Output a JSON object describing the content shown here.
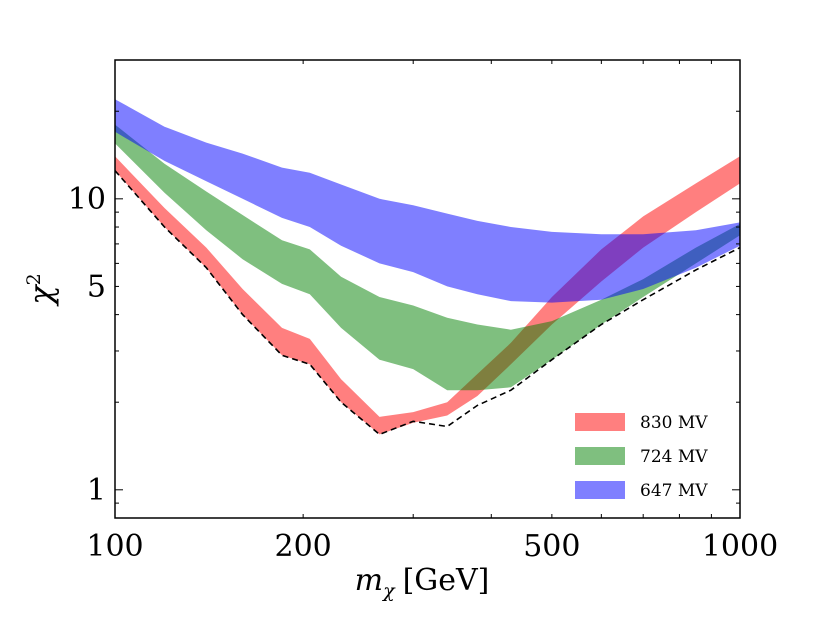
{
  "chart_data": {
    "type": "area",
    "title": "",
    "xlabel": "m_χ [GeV]",
    "xlabel_main": "m",
    "xlabel_sub": "χ",
    "xlabel_unit": "[GeV]",
    "ylabel": "χ²",
    "ylabel_main": "χ",
    "ylabel_sup": "2",
    "xscale": "log",
    "yscale": "log",
    "xlim": [
      100,
      1000
    ],
    "ylim": [
      0.8,
      30
    ],
    "xticks": [
      {
        "value": 100,
        "label": "100"
      },
      {
        "value": 200,
        "label": "200"
      },
      {
        "value": 500,
        "label": "500"
      },
      {
        "value": 1000,
        "label": "1000"
      }
    ],
    "yticks": [
      {
        "value": 1,
        "label": "1"
      },
      {
        "value": 5,
        "label": "5"
      },
      {
        "value": 10,
        "label": "10"
      }
    ],
    "legend_position": "lower-right",
    "series": [
      {
        "name": "830 MV",
        "color": "#ff0000",
        "opacity": 0.5,
        "x": [
          100,
          120,
          140,
          160,
          185,
          205,
          230,
          265,
          300,
          340,
          380,
          430,
          500,
          600,
          700,
          850,
          1000
        ],
        "lower": [
          12.5,
          8.0,
          5.8,
          4.0,
          2.9,
          2.7,
          2.0,
          1.55,
          1.7,
          1.8,
          2.1,
          2.7,
          3.7,
          5.2,
          6.8,
          9.0,
          11.3
        ],
        "upper": [
          14.0,
          9.3,
          6.8,
          4.9,
          3.6,
          3.3,
          2.4,
          1.78,
          1.85,
          2.0,
          2.5,
          3.2,
          4.6,
          6.7,
          8.7,
          11.3,
          14.0
        ]
      },
      {
        "name": "724 MV",
        "color": "#008000",
        "opacity": 0.5,
        "x": [
          100,
          120,
          140,
          160,
          185,
          205,
          230,
          265,
          300,
          340,
          380,
          430,
          500,
          600,
          700,
          850,
          1000
        ],
        "lower": [
          15.5,
          10.5,
          7.8,
          6.2,
          5.1,
          4.7,
          3.6,
          2.8,
          2.6,
          2.2,
          2.2,
          2.25,
          2.8,
          3.7,
          4.6,
          6.0,
          7.5
        ],
        "upper": [
          18.0,
          13.2,
          10.6,
          8.8,
          7.2,
          6.7,
          5.4,
          4.6,
          4.3,
          3.9,
          3.7,
          3.55,
          3.8,
          4.5,
          5.3,
          6.8,
          8.2
        ]
      },
      {
        "name": "647 MV",
        "color": "#0000ff",
        "opacity": 0.5,
        "x": [
          100,
          120,
          140,
          160,
          185,
          205,
          230,
          265,
          300,
          340,
          380,
          430,
          500,
          600,
          700,
          850,
          1000
        ],
        "lower": [
          17.0,
          13.5,
          11.5,
          10.0,
          8.6,
          8.0,
          6.9,
          6.0,
          5.6,
          5.0,
          4.7,
          4.45,
          4.4,
          4.5,
          4.9,
          5.8,
          6.9
        ],
        "upper": [
          22.0,
          17.7,
          15.6,
          14.3,
          12.8,
          12.3,
          11.2,
          10.0,
          9.5,
          8.9,
          8.4,
          8.0,
          7.7,
          7.55,
          7.55,
          7.8,
          8.3
        ]
      }
    ],
    "envelope": {
      "name": "minimum",
      "style": "dashed",
      "color": "#000000",
      "x": [
        100,
        120,
        140,
        160,
        185,
        205,
        230,
        265,
        300,
        340,
        380,
        430,
        500,
        600,
        700,
        850,
        1000
      ],
      "y": [
        12.5,
        8.0,
        5.8,
        4.0,
        2.9,
        2.7,
        2.0,
        1.55,
        1.72,
        1.65,
        1.95,
        2.2,
        2.8,
        3.7,
        4.5,
        5.7,
        6.8
      ]
    }
  }
}
